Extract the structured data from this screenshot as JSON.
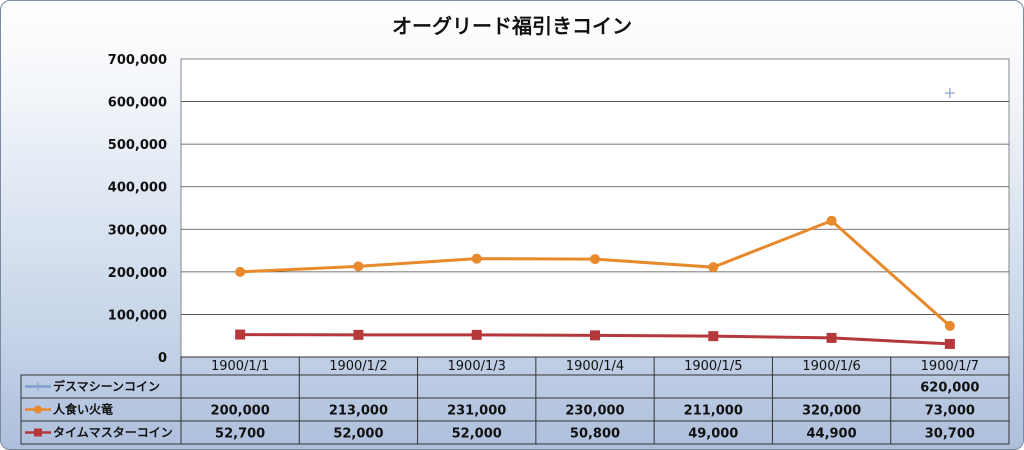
{
  "chart_data": {
    "type": "line",
    "title": "オーグリード福引きコイン",
    "categories": [
      "1900/1/1",
      "1900/1/2",
      "1900/1/3",
      "1900/1/4",
      "1900/1/5",
      "1900/1/6",
      "1900/1/7"
    ],
    "ylim": [
      0,
      700000
    ],
    "yticks": [
      "700,000",
      "600,000",
      "500,000",
      "400,000",
      "300,000",
      "200,000",
      "100,000",
      "0"
    ],
    "ytick_values": [
      700000,
      600000,
      500000,
      400000,
      300000,
      200000,
      100000,
      0
    ],
    "grid": true,
    "legend": "data-table",
    "series": [
      {
        "name": "デスマシーンコイン",
        "color": "#7f9fd0",
        "marker": "plus",
        "values": [
          null,
          null,
          null,
          null,
          null,
          null,
          620000
        ],
        "labels": [
          "",
          "",
          "",
          "",
          "",
          "",
          "620,000"
        ]
      },
      {
        "name": "人食い火竜",
        "color": "#e8892b",
        "marker": "circle",
        "values": [
          200000,
          213000,
          231000,
          230000,
          211000,
          320000,
          73000
        ],
        "labels": [
          "200,000",
          "213,000",
          "231,000",
          "230,000",
          "211,000",
          "320,000",
          "73,000"
        ]
      },
      {
        "name": "タイムマスターコイン",
        "color": "#b5383a",
        "marker": "square",
        "values": [
          52700,
          52000,
          52000,
          50800,
          49000,
          44900,
          30700
        ],
        "labels": [
          "52,700",
          "52,000",
          "52,000",
          "50,800",
          "49,000",
          "44,900",
          "30,700"
        ]
      }
    ]
  }
}
